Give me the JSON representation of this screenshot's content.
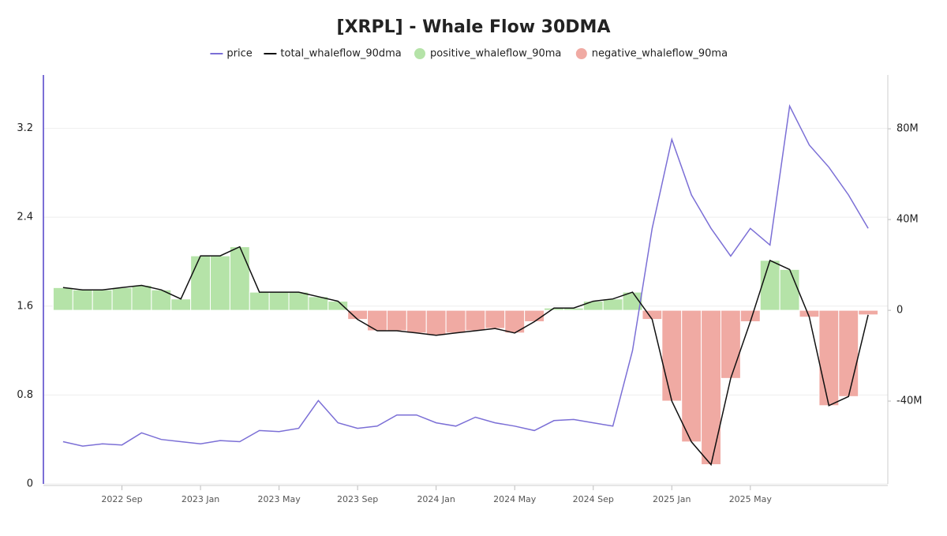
{
  "chart_data": {
    "type": "combo",
    "title": "[XRPL] - Whale Flow 30DMA",
    "x": [
      "2022-06",
      "2022-07",
      "2022-08",
      "2022-09",
      "2022-10",
      "2022-11",
      "2022-12",
      "2023-01",
      "2023-02",
      "2023-03",
      "2023-04",
      "2023-05",
      "2023-06",
      "2023-07",
      "2023-08",
      "2023-09",
      "2023-10",
      "2023-11",
      "2023-12",
      "2024-01",
      "2024-02",
      "2024-03",
      "2024-04",
      "2024-05",
      "2024-06",
      "2024-07",
      "2024-08",
      "2024-09",
      "2024-10",
      "2024-11",
      "2024-12",
      "2025-01",
      "2025-02",
      "2025-03",
      "2025-04",
      "2025-05",
      "2025-06",
      "2025-07",
      "2025-08",
      "2025-09",
      "2025-10",
      "2025-11"
    ],
    "xlim": [
      "2022-05",
      "2025-12"
    ],
    "xticks": [
      {
        "value": "2022-09",
        "label": "2022 Sep"
      },
      {
        "value": "2023-01",
        "label": "2023 Jan"
      },
      {
        "value": "2023-05",
        "label": "2023 May"
      },
      {
        "value": "2023-09",
        "label": "2023 Sep"
      },
      {
        "value": "2024-01",
        "label": "2024 Jan"
      },
      {
        "value": "2024-05",
        "label": "2024 May"
      },
      {
        "value": "2024-09",
        "label": "2024 Sep"
      },
      {
        "value": "2025-01",
        "label": "2025 Jan"
      },
      {
        "value": "2025-05",
        "label": "2025 May"
      }
    ],
    "ylim": [
      0,
      3.68
    ],
    "yticks": [
      0,
      0.8,
      1.6,
      2.4,
      3.2
    ],
    "y2lim": [
      -76500000,
      103700000
    ],
    "y2ticks": [
      {
        "value": -40000000,
        "label": "-40M"
      },
      {
        "value": 0,
        "label": "0"
      },
      {
        "value": 40000000,
        "label": "40M"
      },
      {
        "value": 80000000,
        "label": "80M"
      }
    ],
    "grid": true,
    "legend": "top",
    "series": [
      {
        "name": "price",
        "type": "line",
        "color": "#7b6fd6",
        "axis": "y",
        "values": [
          0.38,
          0.34,
          0.36,
          0.35,
          0.46,
          0.4,
          0.38,
          0.36,
          0.39,
          0.38,
          0.48,
          0.47,
          0.5,
          0.75,
          0.55,
          0.5,
          0.52,
          0.62,
          0.62,
          0.55,
          0.52,
          0.6,
          0.55,
          0.52,
          0.48,
          0.57,
          0.58,
          0.55,
          0.52,
          1.2,
          2.3,
          3.1,
          2.6,
          2.3,
          2.05,
          2.3,
          2.15,
          3.4,
          3.05,
          2.85,
          2.6,
          2.3
        ]
      },
      {
        "name": "total_whaleflow_90dma",
        "type": "line",
        "color": "#111111",
        "axis": "y2",
        "values": [
          10000000,
          9000000,
          9000000,
          10000000,
          11000000,
          9000000,
          5000000,
          24000000,
          24000000,
          28000000,
          8000000,
          8000000,
          8000000,
          6000000,
          4000000,
          -4000000,
          -9000000,
          -9000000,
          -10000000,
          -11000000,
          -10000000,
          -9000000,
          -8000000,
          -10000000,
          -5000000,
          1000000,
          1000000,
          4000000,
          5000000,
          8000000,
          -4000000,
          -40000000,
          -58000000,
          -68000000,
          -30000000,
          -5000000,
          22000000,
          18000000,
          -3000000,
          -42000000,
          -38000000,
          -2000000
        ]
      },
      {
        "name": "positive_whaleflow_90ma",
        "type": "bar",
        "color": "#b5e3a8",
        "axis": "y2",
        "values": [
          10000000,
          9000000,
          9000000,
          10000000,
          11000000,
          9000000,
          5000000,
          24000000,
          24000000,
          28000000,
          8000000,
          8000000,
          8000000,
          6000000,
          4000000,
          null,
          null,
          null,
          null,
          null,
          null,
          null,
          null,
          null,
          null,
          1000000,
          1000000,
          4000000,
          5000000,
          8000000,
          null,
          null,
          null,
          null,
          null,
          null,
          22000000,
          18000000,
          null,
          null,
          null,
          null
        ]
      },
      {
        "name": "negative_whaleflow_90ma",
        "type": "bar",
        "color": "#f0aaa3",
        "axis": "y2",
        "values": [
          null,
          null,
          null,
          null,
          null,
          null,
          null,
          null,
          null,
          null,
          null,
          null,
          null,
          null,
          null,
          -4000000,
          -9000000,
          -9000000,
          -10000000,
          -11000000,
          -10000000,
          -9000000,
          -8000000,
          -10000000,
          -5000000,
          null,
          null,
          null,
          null,
          null,
          -4000000,
          -40000000,
          -58000000,
          -68000000,
          -30000000,
          -5000000,
          null,
          null,
          -3000000,
          -42000000,
          -38000000,
          -2000000
        ]
      }
    ]
  }
}
